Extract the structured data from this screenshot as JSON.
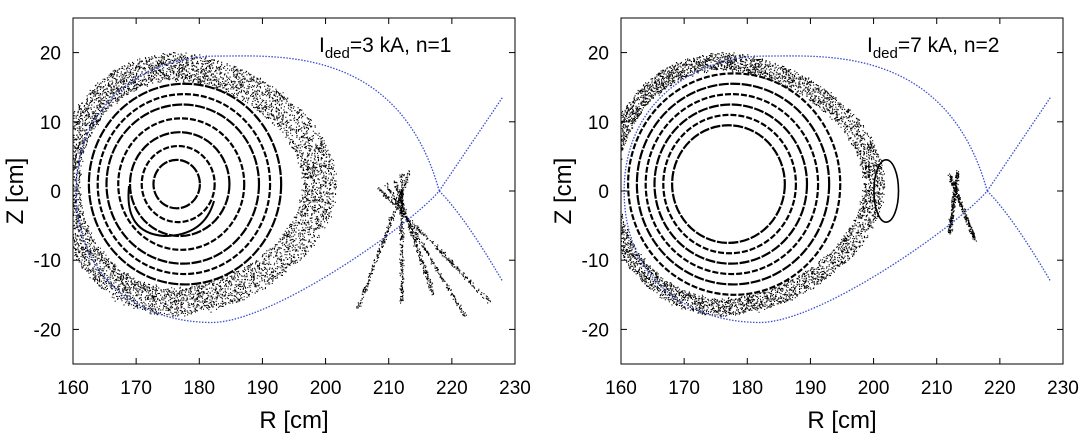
{
  "chart_data": [
    {
      "type": "scatter",
      "title": "",
      "annotation": {
        "main": "I",
        "subscript": "ded",
        "rest": "=3 kA, n=1"
      },
      "xlabel": "R  [cm]",
      "ylabel": "Z  [cm]",
      "xlim": [
        160,
        230
      ],
      "ylim": [
        -25,
        25
      ],
      "xticks": [
        160,
        170,
        180,
        190,
        200,
        210,
        220,
        230
      ],
      "yticks": [
        -20,
        -10,
        0,
        10,
        20
      ],
      "grid": false,
      "series": [
        {
          "name": "boundary",
          "color": "#3a4fd0",
          "kind": "separatrix"
        },
        {
          "name": "field-line-puncture",
          "color": "#000000",
          "kind": "points"
        }
      ],
      "boundary": {
        "axis_center": [
          176,
          1
        ],
        "top": [
          183,
          19.5
        ],
        "bottom": [
          182,
          -19
        ],
        "inner": [
          160.5,
          0
        ],
        "x_point": [
          218,
          0
        ],
        "leg_top_end": [
          228,
          13.5
        ],
        "leg_bottom_end": [
          228,
          -13
        ]
      },
      "features": {
        "closed_surface_radii_cm": [
          3.5,
          5.5,
          7.5,
          9.5,
          11.5,
          13,
          14.5
        ],
        "island_chain": {
          "center": [
            176,
            0
          ],
          "outer_r": 6.0
        },
        "stochastic_layer_outer_r": 19,
        "stripe_ends": [
          [
            205,
            -17
          ],
          [
            212,
            -16
          ],
          [
            217,
            -15
          ],
          [
            222,
            -18
          ],
          [
            226,
            -16
          ]
        ]
      },
      "colors": {
        "points": "#000000",
        "boundary": "#3a4fd0",
        "frame": "#000000"
      }
    },
    {
      "type": "scatter",
      "title": "",
      "annotation": {
        "main": "I",
        "subscript": "ded",
        "rest": "=7 kA, n=2"
      },
      "xlabel": "R  [cm]",
      "ylabel": "Z  [cm]",
      "xlim": [
        160,
        230
      ],
      "ylim": [
        -25,
        25
      ],
      "xticks": [
        160,
        170,
        180,
        190,
        200,
        210,
        220,
        230
      ],
      "yticks": [
        -20,
        -10,
        0,
        10,
        20
      ],
      "grid": false,
      "series": [
        {
          "name": "boundary",
          "color": "#3a4fd0",
          "kind": "separatrix"
        },
        {
          "name": "field-line-puncture",
          "color": "#000000",
          "kind": "points"
        }
      ],
      "boundary": {
        "axis_center": [
          176,
          1
        ],
        "top": [
          183,
          19.5
        ],
        "bottom": [
          182,
          -19
        ],
        "inner": [
          160.5,
          0
        ],
        "x_point": [
          218,
          0
        ],
        "leg_top_end": [
          228,
          13.5
        ],
        "leg_bottom_end": [
          228,
          -13
        ]
      },
      "features": {
        "closed_surface_radii_cm": [
          8.5,
          10,
          11.5,
          13,
          14.5,
          16
        ],
        "island_chain": {
          "center": [
            202,
            0
          ],
          "outer_r": 1.5
        },
        "stochastic_layer_outer_r": 19,
        "stripe_ends": [
          [
            212,
            -6
          ],
          [
            216,
            -7
          ]
        ]
      },
      "colors": {
        "points": "#000000",
        "boundary": "#3a4fd0",
        "frame": "#000000"
      }
    }
  ]
}
